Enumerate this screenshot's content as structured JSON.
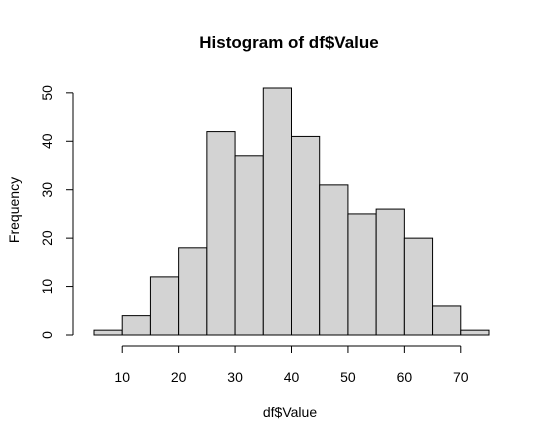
{
  "chart_data": {
    "type": "bar",
    "title": "Histogram of df$Value",
    "xlabel": "df$Value",
    "ylabel": "Frequency",
    "bin_edges": [
      5,
      10,
      15,
      20,
      25,
      30,
      35,
      40,
      45,
      50,
      55,
      60,
      65,
      70,
      75
    ],
    "values": [
      1,
      4,
      12,
      18,
      42,
      37,
      51,
      41,
      31,
      25,
      26,
      20,
      6,
      1
    ],
    "xlim": [
      5,
      75
    ],
    "ylim": [
      0,
      51
    ],
    "x_ticks": [
      10,
      20,
      30,
      40,
      50,
      60,
      70
    ],
    "y_ticks": [
      0,
      10,
      20,
      30,
      40,
      50
    ],
    "bar_fill": "#d3d3d3",
    "bar_stroke": "#000000",
    "grid": false,
    "legend": "none"
  }
}
